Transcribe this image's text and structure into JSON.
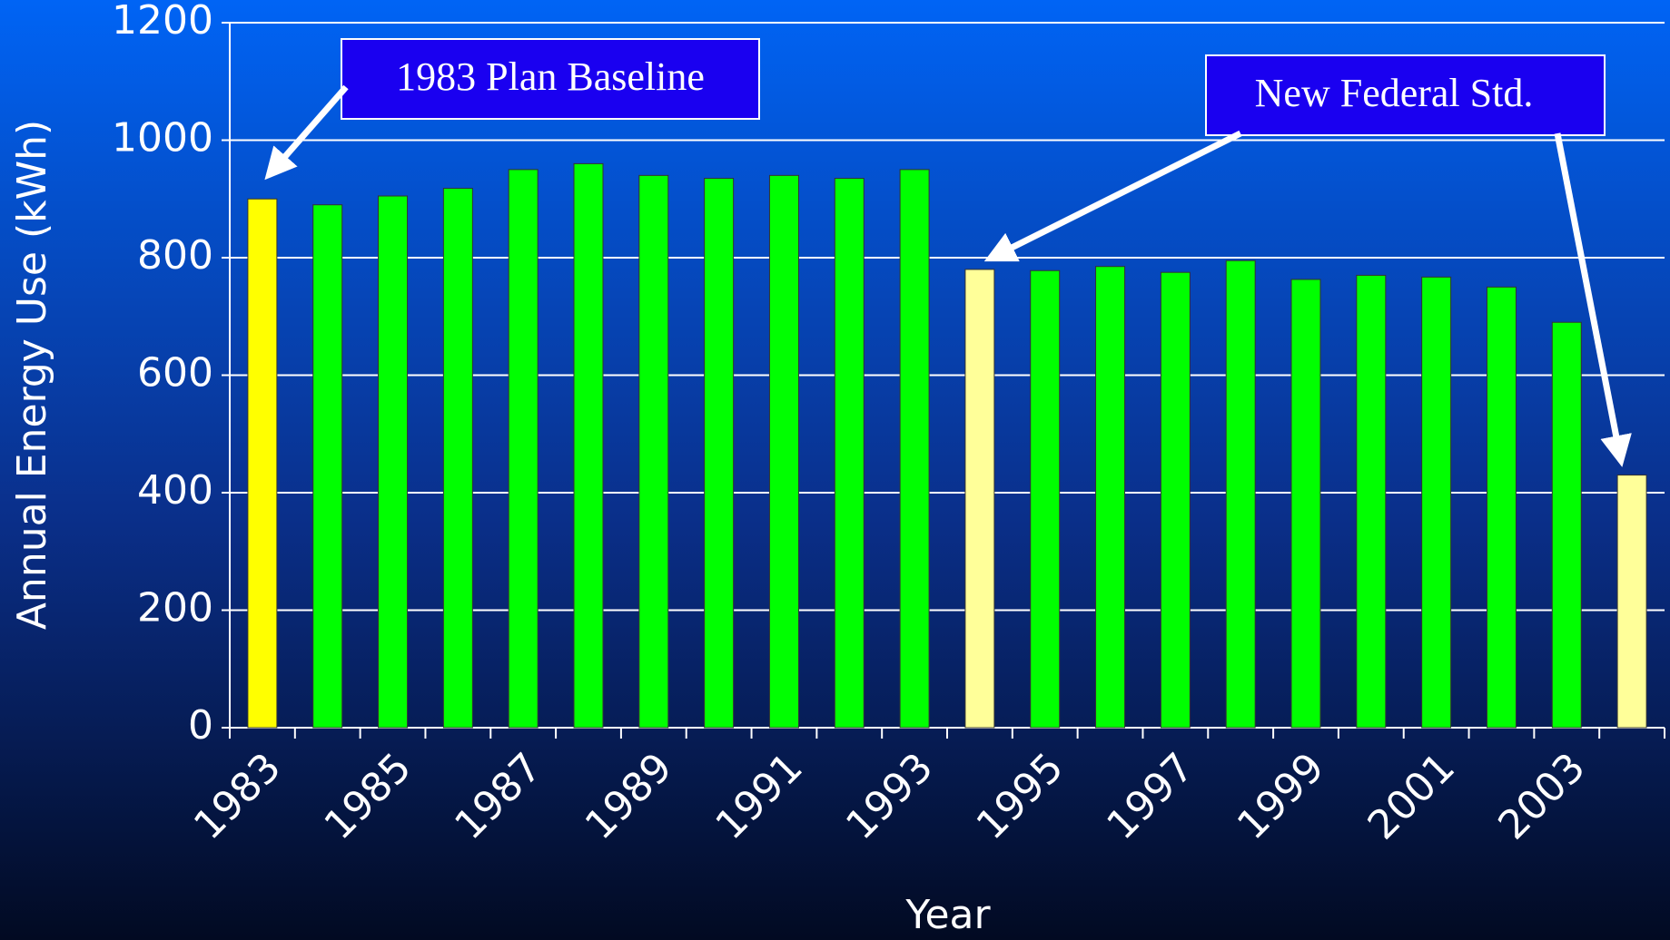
{
  "chart_data": {
    "type": "bar",
    "y_label": "Annual Energy Use (kWh)",
    "x_label": "Year",
    "categories": [
      "1983",
      null,
      "1985",
      null,
      "1987",
      null,
      "1989",
      null,
      "1991",
      null,
      "1993",
      null,
      "1995",
      null,
      "1997",
      null,
      "1999",
      null,
      "2001",
      null,
      "2003",
      null
    ],
    "values": [
      900,
      890,
      905,
      918,
      950,
      960,
      940,
      935,
      940,
      935,
      950,
      780,
      778,
      785,
      775,
      795,
      763,
      770,
      767,
      750,
      690,
      430
    ],
    "colors": [
      "#ffff00",
      "#00ff00",
      "#00ff00",
      "#00ff00",
      "#00ff00",
      "#00ff00",
      "#00ff00",
      "#00ff00",
      "#00ff00",
      "#00ff00",
      "#00ff00",
      "#ffff99",
      "#00ff00",
      "#00ff00",
      "#00ff00",
      "#00ff00",
      "#00ff00",
      "#00ff00",
      "#00ff00",
      "#00ff00",
      "#00ff00",
      "#ffff99"
    ],
    "ylim": [
      0,
      1200
    ],
    "yticks": [
      0,
      200,
      400,
      600,
      800,
      1000,
      1200
    ],
    "grid": true,
    "annotations": [
      "1983 Plan Baseline",
      "New Federal Std."
    ]
  }
}
